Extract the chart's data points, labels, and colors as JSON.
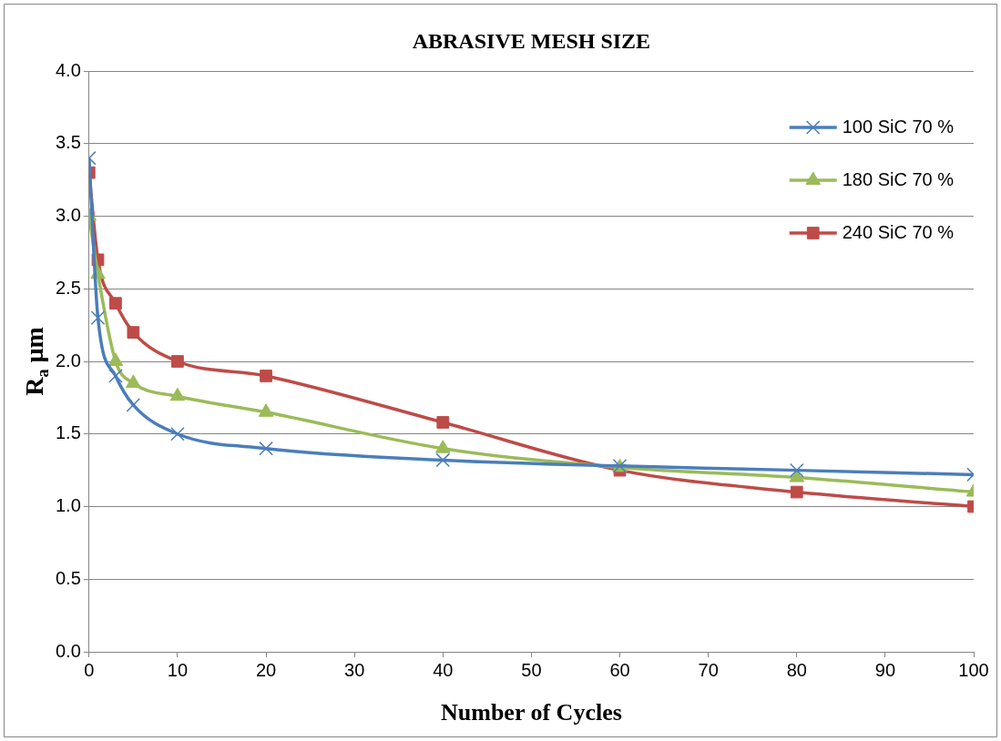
{
  "chart_data": {
    "type": "line",
    "title": "ABRASIVE MESH SIZE",
    "xlabel": "Number of Cycles",
    "ylabel": "R$_{a}$ µm",
    "x": [
      0,
      1,
      3,
      5,
      10,
      20,
      40,
      60,
      80,
      100
    ],
    "xlim": [
      0,
      100
    ],
    "xticks": [
      0,
      10,
      20,
      30,
      40,
      50,
      60,
      70,
      80,
      90,
      100
    ],
    "ylim": [
      0,
      4
    ],
    "yticks": [
      {
        "value": 0,
        "label": "0.0"
      },
      0.5,
      {
        "value": 1,
        "label": "1.0"
      },
      1.5,
      {
        "value": 2,
        "label": "2.0"
      },
      2.5,
      {
        "value": 3,
        "label": "3.0"
      },
      3.5,
      {
        "value": 4,
        "label": "4.0"
      }
    ],
    "grid": "y",
    "legend": "top right",
    "line_style": "solid",
    "series": [
      {
        "name": "100 SiC 70 %",
        "color": "#4a7ebb",
        "marker": "cross",
        "values": [
          3.4,
          2.3,
          1.9,
          1.7,
          1.5,
          1.4,
          1.32,
          1.28,
          1.25,
          1.22
        ]
      },
      {
        "name": "180 SiC 70 %",
        "color": "#9bbb59",
        "marker": "triangle",
        "values": [
          3.0,
          2.6,
          2.0,
          1.85,
          1.76,
          1.65,
          1.4,
          1.27,
          1.2,
          1.1
        ]
      },
      {
        "name": "240 SiC 70 %",
        "color": "#be4b48",
        "marker": "square",
        "values": [
          3.3,
          2.7,
          2.4,
          2.2,
          2.0,
          1.9,
          1.58,
          1.25,
          1.1,
          1.0
        ]
      }
    ]
  }
}
